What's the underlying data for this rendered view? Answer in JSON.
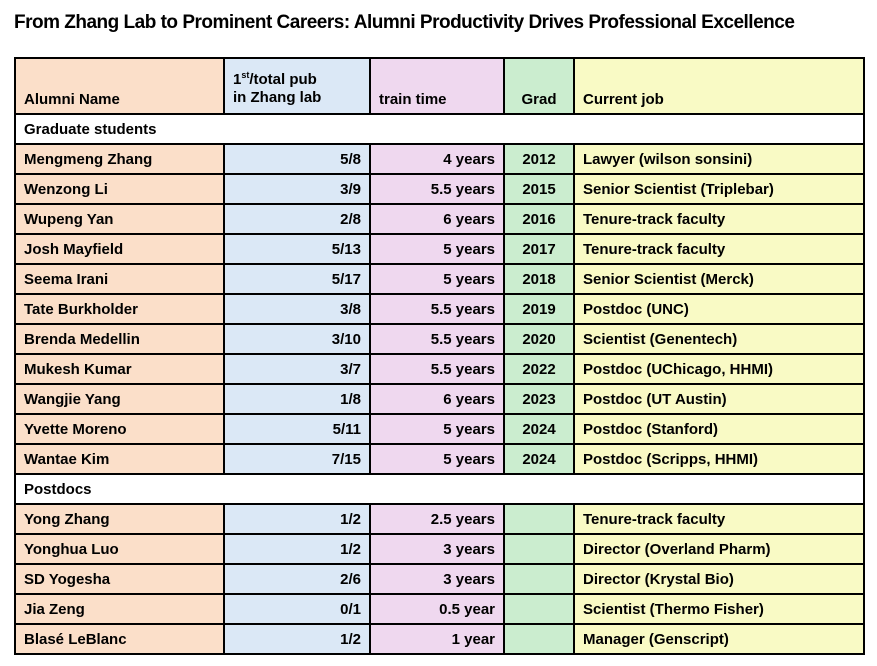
{
  "title": "From Zhang Lab to Prominent Careers: Alumni Productivity Drives Professional Excellence",
  "table": {
    "header": {
      "name": "Alumni Name",
      "pub": {
        "base": "1",
        "sup": "st",
        "rest": "/total pub",
        "line2": "in Zhang lab"
      },
      "train": "train time",
      "grad": "Grad",
      "job": "Current job"
    },
    "sections": [
      {
        "label": "Graduate students",
        "rows": [
          [
            "Mengmeng Zhang",
            "5/8",
            "4 years",
            "2012",
            "Lawyer (wilson sonsini)"
          ],
          [
            "Wenzong Li",
            "3/9",
            "5.5 years",
            "2015",
            "Senior Scientist (Triplebar)"
          ],
          [
            "Wupeng Yan",
            "2/8",
            "6 years",
            "2016",
            "Tenure-track faculty"
          ],
          [
            "Josh Mayfield",
            "5/13",
            "5 years",
            "2017",
            "Tenure-track faculty"
          ],
          [
            "Seema Irani",
            "5/17",
            "5 years",
            "2018",
            "Senior Scientist (Merck)"
          ],
          [
            "Tate Burkholder",
            "3/8",
            "5.5 years",
            "2019",
            "Postdoc (UNC)"
          ],
          [
            "Brenda Medellin",
            "3/10",
            "5.5 years",
            "2020",
            "Scientist (Genentech)"
          ],
          [
            "Mukesh Kumar",
            "3/7",
            "5.5 years",
            "2022",
            "Postdoc (UChicago, HHMI)"
          ],
          [
            "Wangjie Yang",
            "1/8",
            "6 years",
            "2023",
            "Postdoc (UT Austin)"
          ],
          [
            "Yvette Moreno",
            "5/11",
            "5 years",
            "2024",
            "Postdoc (Stanford)"
          ],
          [
            "Wantae Kim",
            "7/15",
            "5 years",
            "2024",
            "Postdoc (Scripps, HHMI)"
          ]
        ]
      },
      {
        "label": "Postdocs",
        "rows": [
          [
            "Yong Zhang",
            "1/2",
            "2.5 years",
            "",
            "Tenure-track faculty"
          ],
          [
            "Yonghua Luo",
            "1/2",
            "3 years",
            "",
            "Director (Overland Pharm)"
          ],
          [
            "SD Yogesha",
            "2/6",
            "3 years",
            "",
            "Director (Krystal Bio)"
          ],
          [
            "Jia Zeng",
            "0/1",
            "0.5 year",
            "",
            "Scientist (Thermo Fisher)"
          ],
          [
            "Blasé LeBlanc",
            "1/2",
            "1 year",
            "",
            "Manager (Genscript)"
          ]
        ]
      }
    ]
  },
  "colors": {
    "column_fills": [
      "#FBDFC9",
      "#DBE8F6",
      "#EFD8EF",
      "#CBEDCF",
      "#F9FAC5"
    ],
    "section_row_bg": "#FFFFFF",
    "border": "#000000",
    "text": "#000000",
    "page_bg": "#FFFFFF"
  }
}
